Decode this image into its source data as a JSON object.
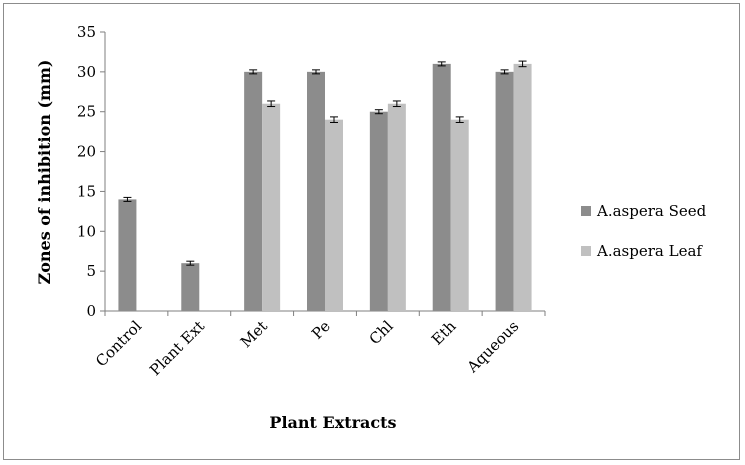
{
  "chart_data": {
    "type": "bar",
    "title": "",
    "xlabel": "Plant Extracts",
    "ylabel": "Zones of inhibition (mm)",
    "ylim": [
      0,
      35
    ],
    "yticks": [
      0,
      5,
      10,
      15,
      20,
      25,
      30,
      35
    ],
    "categories": [
      "Control",
      "Plant Ext",
      "Met",
      "Pe",
      "Chl",
      "Eth",
      "Aqueous"
    ],
    "series": [
      {
        "name": "A.aspera Seed",
        "color": "#8c8c8c",
        "values": [
          14,
          6,
          30,
          30,
          25,
          31,
          30
        ],
        "errors": [
          0.25,
          0.25,
          0.25,
          0.25,
          0.25,
          0.25,
          0.25
        ]
      },
      {
        "name": "A.aspera Leaf",
        "color": "#c0c0c0",
        "values": [
          null,
          null,
          26,
          24,
          26,
          24,
          31
        ],
        "errors": [
          null,
          null,
          0.35,
          0.35,
          0.35,
          0.35,
          0.35
        ]
      }
    ],
    "grid": false,
    "legend": "right"
  }
}
